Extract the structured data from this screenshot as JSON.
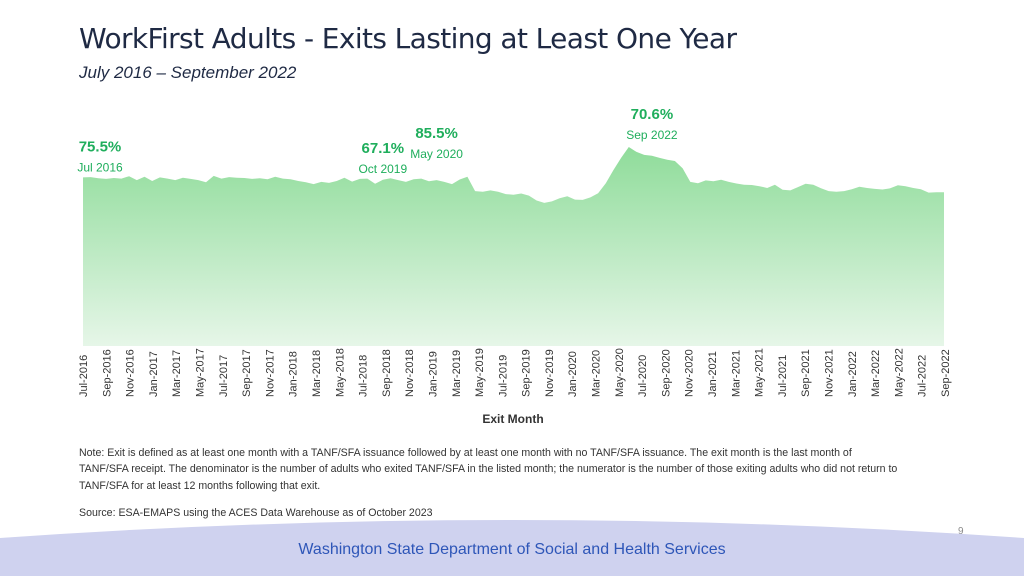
{
  "slide": {
    "title": "WorkFirst Adults - Exits Lasting at Least One Year",
    "subtitle": "July 2016 – September 2022",
    "note": "Note: Exit is defined as at least one month with a TANF/SFA issuance followed by at least one month with no TANF/SFA issuance. The exit month is the last month of TANF/SFA receipt. The denominator is the number of adults who exited TANF/SFA in the listed month; the numerator is the number of those exiting adults who did not return to TANF/SFA for at least 12 months following that exit.",
    "source": "Source: ESA-EMAPS using the ACES Data Warehouse as of October 2023",
    "page_number": "9",
    "footer": "Washington State Department of Social and Health Services"
  },
  "colors": {
    "title": "#1f2a44",
    "accent_green": "#1fae5c",
    "area_top": "#8fdc9a",
    "area_bottom": "#e6f6e8",
    "footer_band": "#cfd2ef",
    "footer_text": "#2e56b8"
  },
  "chart_data": {
    "type": "area",
    "xlabel": "Exit Month",
    "ylabel": "",
    "y_axis_visible": false,
    "grid": false,
    "tick_labels": [
      "Jul-2016",
      "Sep-2016",
      "Nov-2016",
      "Jan-2017",
      "Mar-2017",
      "May-2017",
      "Jul-2017",
      "Sep-2017",
      "Nov-2017",
      "Jan-2018",
      "Mar-2018",
      "May-2018",
      "Jul-2018",
      "Sep-2018",
      "Nov-2018",
      "Jan-2019",
      "Mar-2019",
      "May-2019",
      "Jul-2019",
      "Sep-2019",
      "Nov-2019",
      "Jan-2020",
      "Mar-2020",
      "May-2020",
      "Jul-2020",
      "Sep-2020",
      "Nov-2020",
      "Jan-2021",
      "Mar-2021",
      "May-2021",
      "Jul-2021",
      "Sep-2021",
      "Nov-2021",
      "Jan-2022",
      "Mar-2022",
      "May-2022",
      "Jul-2022",
      "Sep-2022"
    ],
    "x_start": "Jul-2016",
    "x_end": "Sep-2022",
    "series": [
      {
        "values": [
          75.5,
          75.6,
          75.2,
          75.0,
          75.3,
          75.1,
          75.9,
          74.6,
          75.7,
          74.3,
          75.5,
          75.1,
          74.6,
          75.4,
          75.0,
          74.6,
          73.9,
          76.0,
          75.1,
          75.6,
          75.4,
          75.3,
          75.0,
          75.2,
          74.9,
          75.7,
          75.1,
          74.9,
          74.3,
          73.9,
          73.3,
          74.0,
          73.7,
          74.3,
          75.4,
          74.1,
          75.0,
          75.1,
          73.4,
          74.7,
          75.2,
          74.6,
          74.0,
          74.9,
          75.1,
          74.2,
          74.6,
          74.0,
          73.3,
          74.8,
          75.7,
          71.0,
          70.8,
          71.2,
          70.8,
          70.0,
          69.8,
          70.2,
          69.5,
          67.9,
          67.1,
          67.6,
          68.6,
          69.3,
          68.2,
          68.1,
          68.9,
          70.3,
          73.6,
          77.9,
          81.9,
          85.5,
          83.9,
          82.9,
          82.6,
          81.9,
          81.3,
          80.9,
          78.5,
          74.0,
          73.6,
          74.5,
          74.2,
          74.7,
          74.0,
          73.5,
          73.1,
          73.0,
          72.6,
          72.0,
          73.1,
          71.4,
          71.2,
          72.3,
          73.4,
          73.1,
          71.9,
          71.0,
          70.8,
          71.0,
          71.6,
          72.4,
          72.0,
          71.7,
          71.5,
          71.9,
          72.9,
          72.6,
          72.0,
          71.6,
          70.5,
          70.6,
          70.6
        ]
      }
    ],
    "annotations": [
      {
        "value": "75.5%",
        "label": "Jul 2016",
        "index": 0
      },
      {
        "value": "67.1%",
        "label": "Oct 2019",
        "index": 39
      },
      {
        "value": "85.5%",
        "label": "May 2020",
        "index": 46
      },
      {
        "value": "70.6%",
        "label": "Sep 2022",
        "index": 74
      }
    ]
  }
}
